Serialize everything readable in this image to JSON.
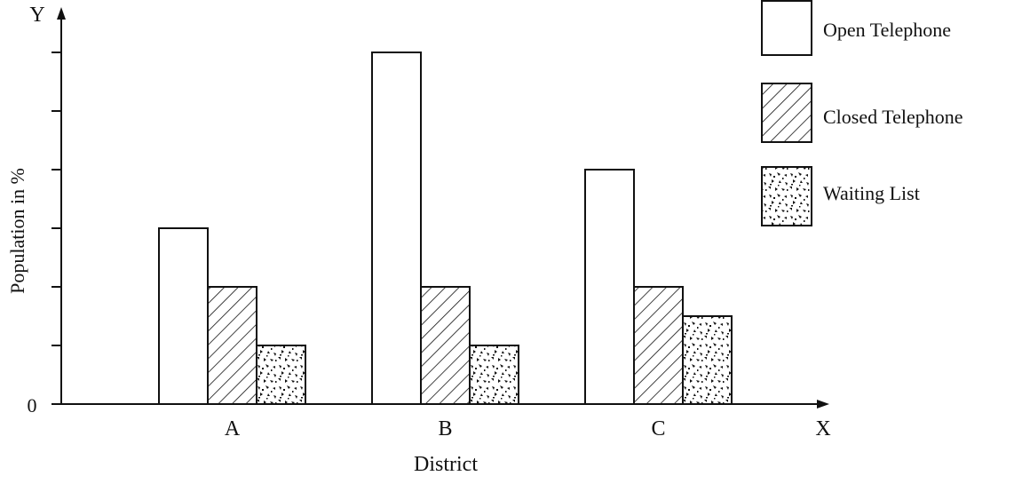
{
  "chart_data": {
    "type": "bar",
    "categories": [
      "A",
      "B",
      "C"
    ],
    "series": [
      {
        "name": "Open Telephone",
        "values": [
          6,
          12,
          8
        ],
        "pattern": "none"
      },
      {
        "name": "Closed Telephone",
        "values": [
          4,
          4,
          4
        ],
        "pattern": "hatch"
      },
      {
        "name": "Waiting List",
        "values": [
          2,
          2,
          3
        ],
        "pattern": "speckle"
      }
    ],
    "ylim": [
      0,
      12.5
    ],
    "xlabel": "District",
    "ylabel": "Population in %",
    "x_axis_letter": "X",
    "y_axis_letter": "Y",
    "origin_label": "0",
    "grid": false,
    "legend_position": "top-right"
  },
  "colors": {
    "stroke": "#111111",
    "fill": "#ffffff"
  }
}
